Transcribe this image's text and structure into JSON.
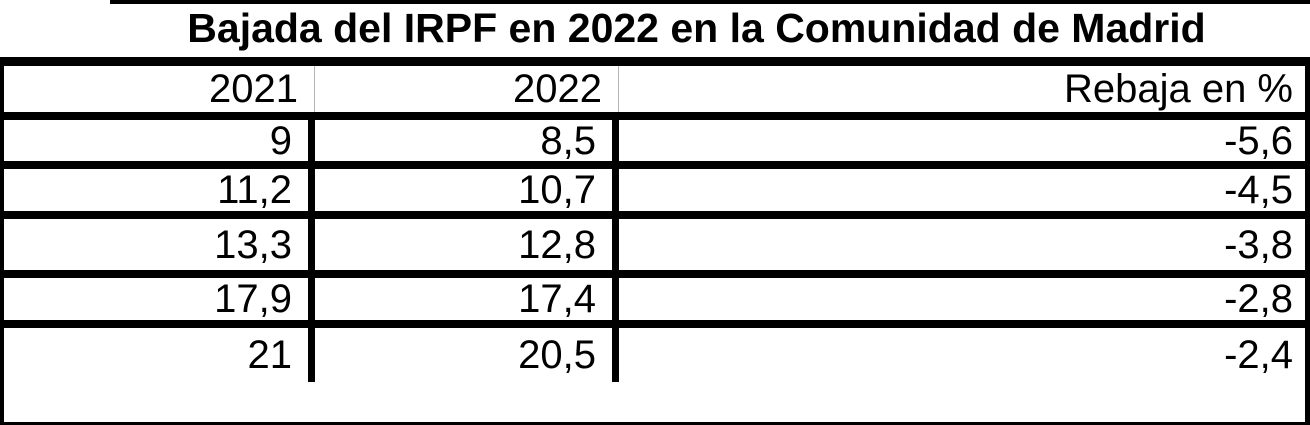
{
  "title": "Bajada del IRPF en 2022 en la Comunidad de Madrid",
  "table": {
    "columns": [
      "2021",
      "2022",
      "Rebaja en %"
    ],
    "rows": [
      [
        "9",
        "8,5",
        "-5,6"
      ],
      [
        "11,2",
        "10,7",
        "-4,5"
      ],
      [
        "13,3",
        "12,8",
        "-3,8"
      ],
      [
        "17,9",
        "17,4",
        "-2,8"
      ],
      [
        "21",
        "20,5",
        "-2,4"
      ]
    ]
  },
  "colors": {
    "text": "#000000",
    "border": "#000000",
    "header_divider": "#b3b3b3",
    "background": "#ffffff"
  },
  "chart_data": {
    "type": "table",
    "title": "Bajada del IRPF en 2022 en la Comunidad de Madrid",
    "columns": [
      "2021",
      "2022",
      "Rebaja en %"
    ],
    "rows": [
      [
        9,
        8.5,
        -5.6
      ],
      [
        11.2,
        10.7,
        -4.5
      ],
      [
        13.3,
        12.8,
        -3.8
      ],
      [
        17.9,
        17.4,
        -2.8
      ],
      [
        21,
        20.5,
        -2.4
      ]
    ],
    "notes": "Decimal values displayed with comma as decimal separator; values right-aligned"
  }
}
